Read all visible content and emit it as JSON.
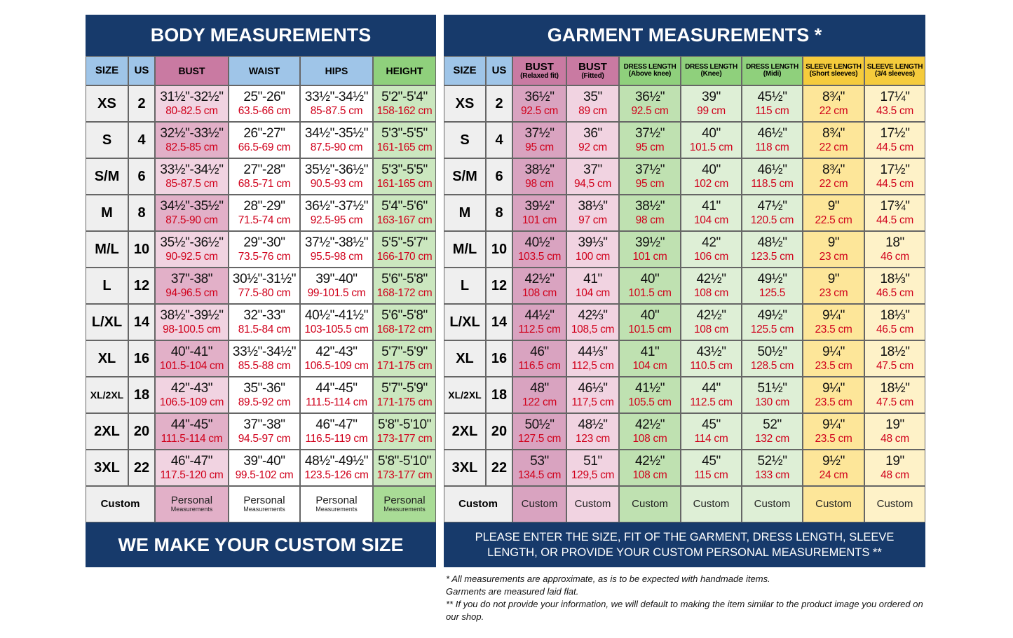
{
  "body_table": {
    "title": "BODY MEASUREMENTS",
    "headers": [
      "SIZE",
      "US",
      "BUST",
      "WAIST",
      "HIPS",
      "HEIGHT"
    ],
    "rows": [
      {
        "size": "XS",
        "us": 2,
        "cells": [
          [
            "31½\"-32½\"",
            "80-82.5 cm"
          ],
          [
            "25\"-26\"",
            "63.5-66 cm"
          ],
          [
            "33½\"-34½\"",
            "85-87.5 cm"
          ],
          [
            "5'2\"-5'4\"",
            "158-162 cm"
          ]
        ]
      },
      {
        "size": "S",
        "us": 4,
        "cells": [
          [
            "32½\"-33½\"",
            "82.5-85 cm"
          ],
          [
            "26\"-27\"",
            "66.5-69 cm"
          ],
          [
            "34½\"-35½\"",
            "87.5-90 cm"
          ],
          [
            "5'3\"-5'5\"",
            "161-165 cm"
          ]
        ]
      },
      {
        "size": "S/M",
        "us": 6,
        "cells": [
          [
            "33½\"-34½\"",
            "85-87.5 cm"
          ],
          [
            "27\"-28\"",
            "68.5-71 cm"
          ],
          [
            "35½\"-36½\"",
            "90.5-93 cm"
          ],
          [
            "5'3\"-5'5\"",
            "161-165 cm"
          ]
        ]
      },
      {
        "size": "M",
        "us": 8,
        "cells": [
          [
            "34½\"-35½\"",
            "87.5-90 cm"
          ],
          [
            "28\"-29\"",
            "71.5-74 cm"
          ],
          [
            "36½\"-37½\"",
            "92.5-95 cm"
          ],
          [
            "5'4\"-5'6\"",
            "163-167 cm"
          ]
        ]
      },
      {
        "size": "M/L",
        "us": 10,
        "cells": [
          [
            "35½\"-36½\"",
            "90-92.5 cm"
          ],
          [
            "29\"-30\"",
            "73.5-76 cm"
          ],
          [
            "37½\"-38½\"",
            "95.5-98 cm"
          ],
          [
            "5'5\"-5'7\"",
            "166-170 cm"
          ]
        ]
      },
      {
        "size": "L",
        "us": 12,
        "cells": [
          [
            "37\"-38\"",
            "94-96.5 cm"
          ],
          [
            "30½\"-31½\"",
            "77.5-80 cm"
          ],
          [
            "39\"-40\"",
            "99-101.5 cm"
          ],
          [
            "5'6\"-5'8\"",
            "168-172 cm"
          ]
        ]
      },
      {
        "size": "L/XL",
        "us": 14,
        "cells": [
          [
            "38½\"-39½\"",
            "98-100.5 cm"
          ],
          [
            "32\"-33\"",
            "81.5-84 cm"
          ],
          [
            "40½\"-41½\"",
            "103-105.5 cm"
          ],
          [
            "5'6\"-5'8\"",
            "168-172 cm"
          ]
        ]
      },
      {
        "size": "XL",
        "us": 16,
        "cells": [
          [
            "40\"-41\"",
            "101.5-104 cm"
          ],
          [
            "33½\"-34½\"",
            "85.5-88 cm"
          ],
          [
            "42\"-43\"",
            "106.5-109 cm"
          ],
          [
            "5'7\"-5'9\"",
            "171-175 cm"
          ]
        ]
      },
      {
        "size": "XL/2XL",
        "us": 18,
        "cells": [
          [
            "42\"-43\"",
            "106.5-109 cm"
          ],
          [
            "35\"-36\"",
            "89.5-92 cm"
          ],
          [
            "44\"-45\"",
            "111.5-114 cm"
          ],
          [
            "5'7\"-5'9\"",
            "171-175 cm"
          ]
        ]
      },
      {
        "size": "2XL",
        "us": 20,
        "cells": [
          [
            "44\"-45\"",
            "111.5-114 cm"
          ],
          [
            "37\"-38\"",
            "94.5-97 cm"
          ],
          [
            "46\"-47\"",
            "116.5-119 cm"
          ],
          [
            "5'8\"-5'10\"",
            "173-177 cm"
          ]
        ]
      },
      {
        "size": "3XL",
        "us": 22,
        "cells": [
          [
            "46\"-47\"",
            "117.5-120 cm"
          ],
          [
            "39\"-40\"",
            "99.5-102 cm"
          ],
          [
            "48½\"-49½\"",
            "123.5-126 cm"
          ],
          [
            "5'8\"-5'10\"",
            "173-177 cm"
          ]
        ]
      }
    ],
    "custom_row": {
      "label": "Custom",
      "cells": [
        [
          "Personal",
          "Measurements"
        ],
        [
          "Personal",
          "Measurements"
        ],
        [
          "Personal",
          "Measurements"
        ],
        [
          "Personal",
          "Measurements"
        ]
      ]
    },
    "footer": "WE MAKE YOUR CUSTOM SIZE"
  },
  "garment_table": {
    "title": "GARMENT MEASUREMENTS *",
    "headers": [
      "SIZE",
      "US",
      {
        "top": "BUST",
        "sub": "(Relaxed fit)"
      },
      {
        "top": "BUST",
        "sub": "(Fitted)"
      },
      {
        "top": "DRESS LENGTH",
        "sub": "(Above knee)"
      },
      {
        "top": "DRESS LENGTH",
        "sub": "(Knee)"
      },
      {
        "top": "DRESS LENGTH",
        "sub": "(Midi)"
      },
      {
        "top": "SLEEVE LENGTH",
        "sub": "(Short sleeves)"
      },
      {
        "top": "SLEEVE LENGTH",
        "sub": "(3/4 sleeves)"
      }
    ],
    "rows": [
      {
        "size": "XS",
        "us": 2,
        "cells": [
          [
            "36½\"",
            "92.5 cm"
          ],
          [
            "35\"",
            "89 cm"
          ],
          [
            "36½\"",
            "92.5 cm"
          ],
          [
            "39\"",
            "99 cm"
          ],
          [
            "45½\"",
            "115 cm"
          ],
          [
            "8¾\"",
            "22 cm"
          ],
          [
            "17¼\"",
            "43.5 cm"
          ]
        ]
      },
      {
        "size": "S",
        "us": 4,
        "cells": [
          [
            "37½\"",
            "95 cm"
          ],
          [
            "36\"",
            "92 cm"
          ],
          [
            "37½\"",
            "95 cm"
          ],
          [
            "40\"",
            "101.5 cm"
          ],
          [
            "46½\"",
            "118 cm"
          ],
          [
            "8¾\"",
            "22 cm"
          ],
          [
            "17½\"",
            "44.5 cm"
          ]
        ]
      },
      {
        "size": "S/M",
        "us": 6,
        "cells": [
          [
            "38½\"",
            "98 cm"
          ],
          [
            "37\"",
            "94,5 cm"
          ],
          [
            "37½\"",
            "95 cm"
          ],
          [
            "40\"",
            "102 cm"
          ],
          [
            "46½\"",
            "118.5 cm"
          ],
          [
            "8¾\"",
            "22 cm"
          ],
          [
            "17½\"",
            "44.5 cm"
          ]
        ]
      },
      {
        "size": "M",
        "us": 8,
        "cells": [
          [
            "39½\"",
            "101 cm"
          ],
          [
            "38⅓\"",
            "97 cm"
          ],
          [
            "38½\"",
            "98 cm"
          ],
          [
            "41\"",
            "104 cm"
          ],
          [
            "47½\"",
            "120.5 cm"
          ],
          [
            "9\"",
            "22.5 cm"
          ],
          [
            "17¾\"",
            "44.5 cm"
          ]
        ]
      },
      {
        "size": "M/L",
        "us": 10,
        "cells": [
          [
            "40½\"",
            "103.5 cm"
          ],
          [
            "39⅓\"",
            "100 cm"
          ],
          [
            "39½\"",
            "101 cm"
          ],
          [
            "42\"",
            "106 cm"
          ],
          [
            "48½\"",
            "123.5 cm"
          ],
          [
            "9\"",
            "23 cm"
          ],
          [
            "18\"",
            "46 cm"
          ]
        ]
      },
      {
        "size": "L",
        "us": 12,
        "cells": [
          [
            "42½\"",
            "108 cm"
          ],
          [
            "41\"",
            "104 cm"
          ],
          [
            "40\"",
            "101.5 cm"
          ],
          [
            "42½\"",
            "108 cm"
          ],
          [
            "49½\"",
            "125.5"
          ],
          [
            "9\"",
            "23 cm"
          ],
          [
            "18⅓\"",
            "46.5 cm"
          ]
        ]
      },
      {
        "size": "L/XL",
        "us": 14,
        "cells": [
          [
            "44½\"",
            "112.5 cm"
          ],
          [
            "42⅔\"",
            "108,5 cm"
          ],
          [
            "40\"",
            "101.5 cm"
          ],
          [
            "42½\"",
            "108 cm"
          ],
          [
            "49½\"",
            "125.5 cm"
          ],
          [
            "9¼\"",
            "23.5 cm"
          ],
          [
            "18⅓\"",
            "46.5 cm"
          ]
        ]
      },
      {
        "size": "XL",
        "us": 16,
        "cells": [
          [
            "46\"",
            "116.5 cm"
          ],
          [
            "44⅓\"",
            "112,5 cm"
          ],
          [
            "41\"",
            "104 cm"
          ],
          [
            "43½\"",
            "110.5 cm"
          ],
          [
            "50½\"",
            "128.5 cm"
          ],
          [
            "9¼\"",
            "23.5 cm"
          ],
          [
            "18½\"",
            "47.5 cm"
          ]
        ]
      },
      {
        "size": "XL/2XL",
        "us": 18,
        "cells": [
          [
            "48\"",
            "122 cm"
          ],
          [
            "46⅓\"",
            "117,5 cm"
          ],
          [
            "41½\"",
            "105.5 cm"
          ],
          [
            "44\"",
            "112.5 cm"
          ],
          [
            "51½\"",
            "130 cm"
          ],
          [
            "9¼\"",
            "23.5 cm"
          ],
          [
            "18½\"",
            "47.5 cm"
          ]
        ]
      },
      {
        "size": "2XL",
        "us": 20,
        "cells": [
          [
            "50½\"",
            "127.5 cm"
          ],
          [
            "48½\"",
            "123 cm"
          ],
          [
            "42½\"",
            "108 cm"
          ],
          [
            "45\"",
            "114 cm"
          ],
          [
            "52\"",
            "132 cm"
          ],
          [
            "9¼\"",
            "23.5 cm"
          ],
          [
            "19\"",
            "48 cm"
          ]
        ]
      },
      {
        "size": "3XL",
        "us": 22,
        "cells": [
          [
            "53\"",
            "134.5 cm"
          ],
          [
            "51\"",
            "129,5 cm"
          ],
          [
            "42½\"",
            "108 cm"
          ],
          [
            "45\"",
            "115 cm"
          ],
          [
            "52½\"",
            "133 cm"
          ],
          [
            "9½\"",
            "24 cm"
          ],
          [
            "19\"",
            "48 cm"
          ]
        ]
      }
    ],
    "custom_row": {
      "label": "Custom",
      "cells": [
        "Custom",
        "Custom",
        "Custom",
        "Custom",
        "Custom",
        "Custom",
        "Custom"
      ]
    },
    "footer": "PLEASE ENTER THE SIZE, FIT OF THE GARMENT, DRESS LENGTH, SLEEVE LENGTH, OR PROVIDE YOUR CUSTOM PERSONAL MEASUREMENTS **"
  },
  "notes": [
    "* All measurements are approximate, as is to be expected with handmade items.",
    "Garments are measured laid flat.",
    "** If you do not provide your information, we will default to making the item similar to the product image you ordered on our shop."
  ]
}
